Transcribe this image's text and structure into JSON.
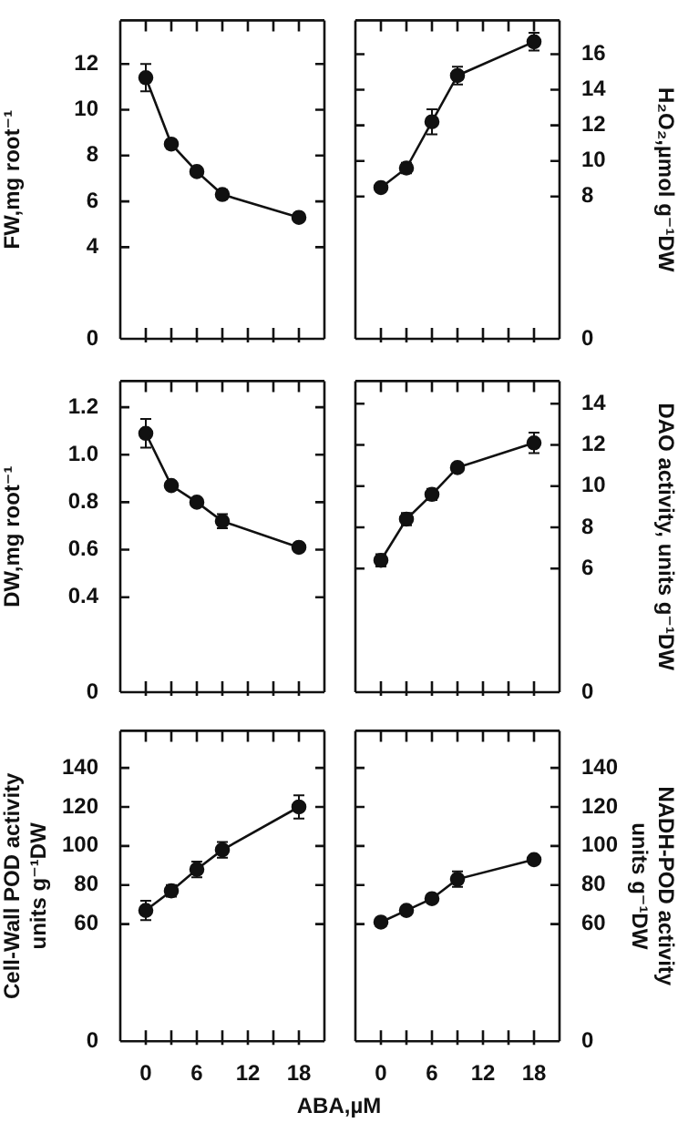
{
  "chart_data": [
    {
      "type": "line",
      "ylabel": "FW,mg root⁻¹",
      "x": [
        0,
        3,
        6,
        9,
        18
      ],
      "xlim": [
        -3,
        21
      ],
      "xticks": [
        0,
        {
          "value": 3,
          "label": null
        },
        6,
        {
          "value": 9,
          "label": null
        },
        12,
        {
          "value": 15,
          "label": null
        },
        18
      ],
      "ylim": [
        0,
        13.9
      ],
      "yticks": [
        0,
        4,
        6,
        8,
        10,
        12
      ],
      "tick_labels": "y",
      "marker": "circle",
      "series": [
        {
          "color": "#111111",
          "values": [
            11.4,
            8.5,
            7.3,
            6.3,
            5.3
          ],
          "errors": [
            0.6,
            0.2,
            null,
            0.2,
            null
          ]
        }
      ]
    },
    {
      "type": "line",
      "ylabel": "H₂O₂,µmol g⁻¹DW",
      "x": [
        0,
        3,
        6,
        9,
        18
      ],
      "xlim": [
        -3,
        21
      ],
      "xticks": [
        0,
        {
          "value": 3,
          "label": null
        },
        6,
        {
          "value": 9,
          "label": null
        },
        12,
        {
          "value": 15,
          "label": null
        },
        18
      ],
      "ylim": [
        0,
        17.9
      ],
      "yticks": [
        0,
        8,
        10,
        12,
        14,
        16
      ],
      "tick_labels": "y",
      "marker": "circle",
      "series": [
        {
          "color": "#111111",
          "values": [
            8.5,
            9.6,
            12.2,
            14.8,
            16.7
          ],
          "errors": [
            null,
            0.3,
            0.7,
            0.5,
            0.5
          ]
        }
      ]
    },
    {
      "type": "line",
      "ylabel": "DW,mg root⁻¹",
      "x": [
        0,
        3,
        6,
        9,
        18
      ],
      "xlim": [
        -3,
        21
      ],
      "xticks": [
        0,
        {
          "value": 3,
          "label": null
        },
        6,
        {
          "value": 9,
          "label": null
        },
        12,
        {
          "value": 15,
          "label": null
        },
        18
      ],
      "ylim": [
        0,
        1.31
      ],
      "yticks": [
        0,
        0.4,
        0.6,
        0.8,
        {
          "value": 1.0,
          "label": "1.0"
        },
        1.2
      ],
      "tick_labels": "y",
      "marker": "circle",
      "series": [
        {
          "color": "#111111",
          "values": [
            1.09,
            0.87,
            0.8,
            0.72,
            0.61
          ],
          "errors": [
            0.06,
            null,
            null,
            0.03,
            null
          ]
        }
      ]
    },
    {
      "type": "line",
      "ylabel": "DAO activity, units g⁻¹DW",
      "x": [
        0,
        3,
        6,
        9,
        18
      ],
      "xlim": [
        -3,
        21
      ],
      "xticks": [
        0,
        {
          "value": 3,
          "label": null
        },
        6,
        {
          "value": 9,
          "label": null
        },
        12,
        {
          "value": 15,
          "label": null
        },
        18
      ],
      "ylim": [
        0,
        15.1
      ],
      "yticks": [
        0,
        6,
        8,
        10,
        12,
        14
      ],
      "tick_labels": "y",
      "marker": "circle",
      "series": [
        {
          "color": "#111111",
          "values": [
            6.4,
            8.4,
            9.6,
            10.9,
            12.1
          ],
          "errors": [
            0.3,
            0.3,
            0.27,
            null,
            0.5
          ]
        }
      ]
    },
    {
      "type": "line",
      "ylabel": "Cell-Wall POD activity\nunits g⁻¹DW",
      "xlabel": "ABA,µM",
      "x": [
        0,
        3,
        6,
        9,
        18
      ],
      "xlim": [
        -3,
        21
      ],
      "xticks": [
        0,
        {
          "value": 3,
          "label": null
        },
        6,
        {
          "value": 9,
          "label": null
        },
        12,
        {
          "value": 15,
          "label": null
        },
        18
      ],
      "ylim": [
        0,
        159
      ],
      "yticks": [
        0,
        60,
        80,
        100,
        120,
        140
      ],
      "marker": "circle",
      "series": [
        {
          "color": "#111111",
          "values": [
            67,
            77,
            88,
            98,
            120
          ],
          "errors": [
            5,
            3,
            4,
            4,
            6
          ]
        }
      ]
    },
    {
      "type": "line",
      "ylabel": "NADH-POD activity\nunits g⁻¹DW",
      "x": [
        0,
        3,
        6,
        9,
        18
      ],
      "xlim": [
        -3,
        21
      ],
      "xticks": [
        0,
        {
          "value": 3,
          "label": null
        },
        6,
        {
          "value": 9,
          "label": null
        },
        12,
        {
          "value": 15,
          "label": null
        },
        18
      ],
      "ylim": [
        0,
        159
      ],
      "yticks": [
        0,
        60,
        80,
        100,
        120,
        140
      ],
      "marker": "circle",
      "series": [
        {
          "color": "#111111",
          "values": [
            61,
            67,
            73,
            83,
            93
          ],
          "errors": [
            null,
            null,
            null,
            4,
            null
          ]
        }
      ]
    }
  ]
}
